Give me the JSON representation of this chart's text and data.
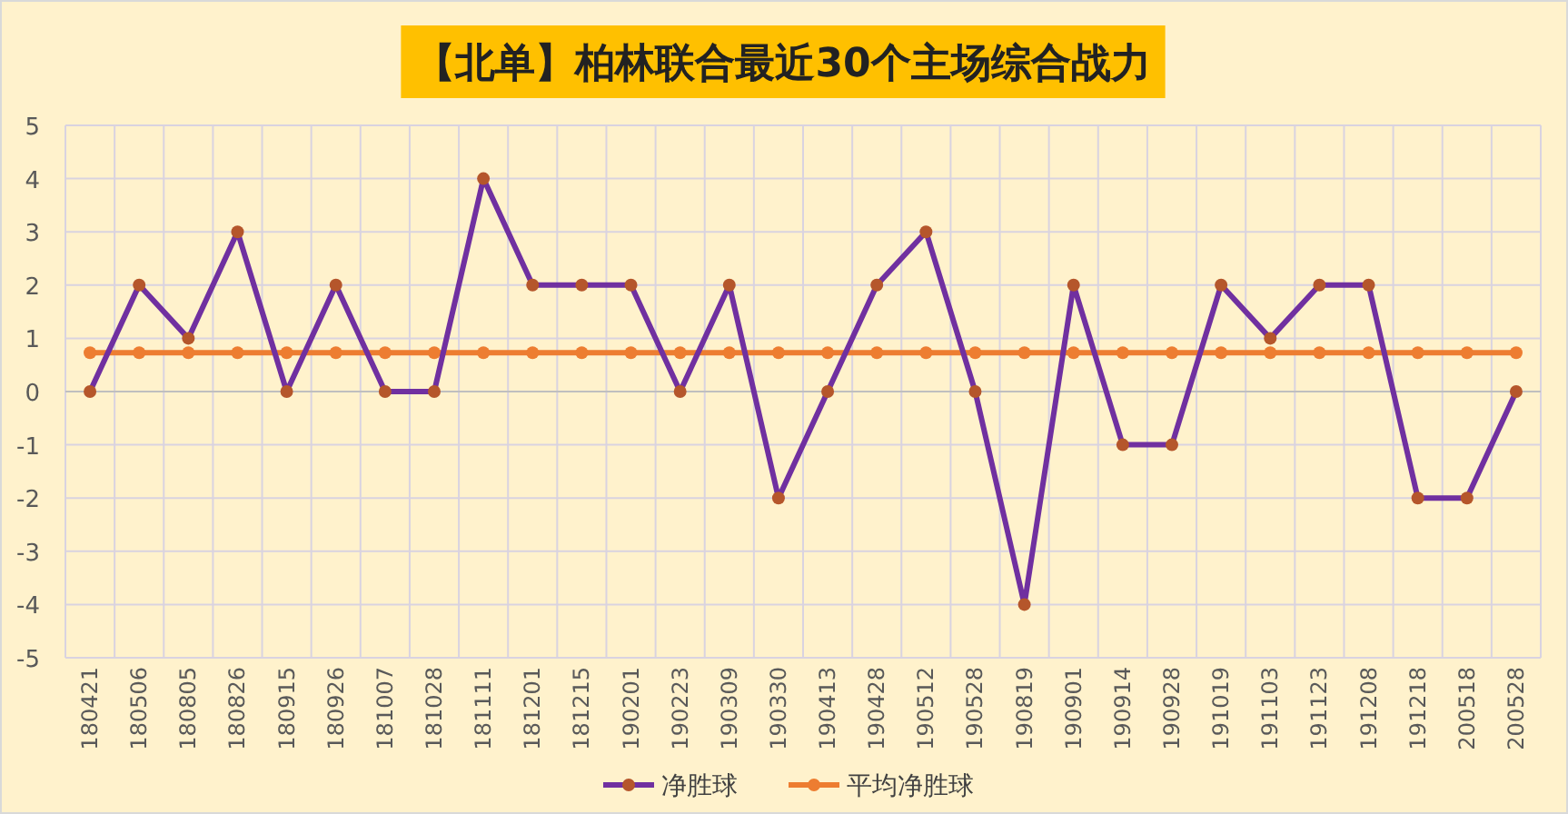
{
  "chart_data": {
    "type": "line",
    "title": "【北单】柏林联合最近30个主场综合战力",
    "categories": [
      "180421",
      "180506",
      "180805",
      "180826",
      "180915",
      "180926",
      "181007",
      "181028",
      "181111",
      "181201",
      "181215",
      "190201",
      "190223",
      "190309",
      "190330",
      "190413",
      "190428",
      "190512",
      "190528",
      "190819",
      "190901",
      "190914",
      "190928",
      "191019",
      "191103",
      "191123",
      "191208",
      "191218",
      "200518",
      "200528"
    ],
    "series": [
      {
        "name": "净胜球",
        "color": "#7030a0",
        "values": [
          0,
          2,
          1,
          3,
          0,
          2,
          0,
          0,
          4,
          2,
          2,
          2,
          0,
          2,
          -2,
          0,
          2,
          3,
          0,
          -4,
          2,
          -1,
          -1,
          2,
          1,
          2,
          2,
          -2,
          -2,
          0
        ]
      },
      {
        "name": "平均净胜球",
        "color": "#ed7d31",
        "values": [
          0.73,
          0.73,
          0.73,
          0.73,
          0.73,
          0.73,
          0.73,
          0.73,
          0.73,
          0.73,
          0.73,
          0.73,
          0.73,
          0.73,
          0.73,
          0.73,
          0.73,
          0.73,
          0.73,
          0.73,
          0.73,
          0.73,
          0.73,
          0.73,
          0.73,
          0.73,
          0.73,
          0.73,
          0.73,
          0.73
        ]
      }
    ],
    "ylim": [
      -5,
      5
    ],
    "yticks": [
      -5,
      -4,
      -3,
      -2,
      -1,
      0,
      1,
      2,
      3,
      4,
      5
    ],
    "grid": true,
    "legend": "bottom",
    "marker": "circle",
    "line_style": "solid"
  }
}
